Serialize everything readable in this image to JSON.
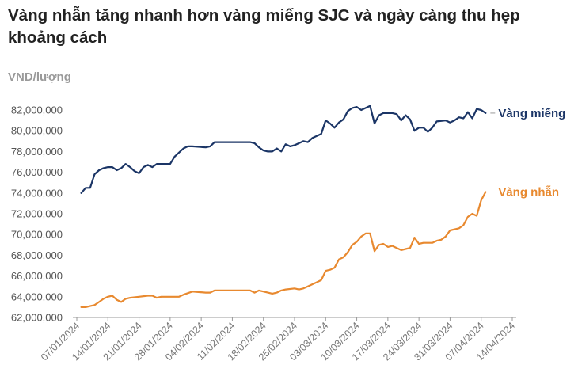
{
  "title": "Vàng nhẫn tăng nhanh hơn vàng miếng SJC và ngày càng thu hẹp khoảng cách",
  "unit_label": "VND/lượng",
  "chart_data": {
    "type": "line",
    "title": "Vàng nhẫn tăng nhanh hơn vàng miếng SJC và ngày càng thu hẹp khoảng cách",
    "ylabel": "VND/lượng",
    "xlabel": "",
    "x_range": [
      "2024-01-07",
      "2024-04-14"
    ],
    "ylim": [
      62000000,
      82000000
    ],
    "y_ticks": [
      {
        "value": 62000000,
        "label": "62,000,000"
      },
      {
        "value": 64000000,
        "label": "64,000,000"
      },
      {
        "value": 66000000,
        "label": "66,000,000"
      },
      {
        "value": 68000000,
        "label": "68,000,000"
      },
      {
        "value": 70000000,
        "label": "70,000,000"
      },
      {
        "value": 72000000,
        "label": "72,000,000"
      },
      {
        "value": 74000000,
        "label": "74,000,000"
      },
      {
        "value": 76000000,
        "label": "76,000,000"
      },
      {
        "value": 78000000,
        "label": "78,000,000"
      },
      {
        "value": 80000000,
        "label": "80,000,000"
      },
      {
        "value": 82000000,
        "label": "82,000,000"
      }
    ],
    "x_ticks": [
      {
        "value": "2024-01-07",
        "label": "07/01/2024"
      },
      {
        "value": "2024-01-14",
        "label": "14/01/2024"
      },
      {
        "value": "2024-01-21",
        "label": "21/01/2024"
      },
      {
        "value": "2024-01-28",
        "label": "28/01/2024"
      },
      {
        "value": "2024-02-04",
        "label": "04/02/2024"
      },
      {
        "value": "2024-02-11",
        "label": "11/02/2024"
      },
      {
        "value": "2024-02-18",
        "label": "18/02/2024"
      },
      {
        "value": "2024-02-25",
        "label": "25/02/2024"
      },
      {
        "value": "2024-03-03",
        "label": "03/03/2024"
      },
      {
        "value": "2024-03-10",
        "label": "10/03/2024"
      },
      {
        "value": "2024-03-17",
        "label": "17/03/2024"
      },
      {
        "value": "2024-03-24",
        "label": "24/03/2024"
      },
      {
        "value": "2024-03-31",
        "label": "31/03/2024"
      },
      {
        "value": "2024-04-07",
        "label": "07/04/2024"
      },
      {
        "value": "2024-04-14",
        "label": "14/04/2024"
      }
    ],
    "grid": false,
    "legend": "end-of-line labels",
    "series": [
      {
        "name": "Vàng miếng",
        "color": "#1b3566",
        "points": [
          [
            "2024-01-08",
            74000000
          ],
          [
            "2024-01-09",
            74500000
          ],
          [
            "2024-01-10",
            74500000
          ],
          [
            "2024-01-11",
            75800000
          ],
          [
            "2024-01-12",
            76200000
          ],
          [
            "2024-01-13",
            76400000
          ],
          [
            "2024-01-14",
            76500000
          ],
          [
            "2024-01-15",
            76500000
          ],
          [
            "2024-01-16",
            76200000
          ],
          [
            "2024-01-17",
            76400000
          ],
          [
            "2024-01-18",
            76800000
          ],
          [
            "2024-01-19",
            76500000
          ],
          [
            "2024-01-20",
            76100000
          ],
          [
            "2024-01-21",
            75900000
          ],
          [
            "2024-01-22",
            76500000
          ],
          [
            "2024-01-23",
            76700000
          ],
          [
            "2024-01-24",
            76500000
          ],
          [
            "2024-01-25",
            76800000
          ],
          [
            "2024-01-28",
            76800000
          ],
          [
            "2024-01-29",
            77500000
          ],
          [
            "2024-01-31",
            78300000
          ],
          [
            "2024-02-01",
            78500000
          ],
          [
            "2024-02-02",
            78500000
          ],
          [
            "2024-02-05",
            78400000
          ],
          [
            "2024-02-06",
            78500000
          ],
          [
            "2024-02-07",
            78900000
          ],
          [
            "2024-02-15",
            78900000
          ],
          [
            "2024-02-16",
            78800000
          ],
          [
            "2024-02-17",
            78400000
          ],
          [
            "2024-02-18",
            78100000
          ],
          [
            "2024-02-19",
            78000000
          ],
          [
            "2024-02-20",
            78000000
          ],
          [
            "2024-02-21",
            78300000
          ],
          [
            "2024-02-22",
            78000000
          ],
          [
            "2024-02-23",
            78700000
          ],
          [
            "2024-02-24",
            78500000
          ],
          [
            "2024-02-25",
            78600000
          ],
          [
            "2024-02-26",
            78800000
          ],
          [
            "2024-02-27",
            79000000
          ],
          [
            "2024-02-28",
            78900000
          ],
          [
            "2024-02-29",
            79300000
          ],
          [
            "2024-03-01",
            79500000
          ],
          [
            "2024-03-02",
            79700000
          ],
          [
            "2024-03-03",
            81000000
          ],
          [
            "2024-03-04",
            80700000
          ],
          [
            "2024-03-05",
            80300000
          ],
          [
            "2024-03-06",
            80800000
          ],
          [
            "2024-03-07",
            81100000
          ],
          [
            "2024-03-08",
            81900000
          ],
          [
            "2024-03-09",
            82200000
          ],
          [
            "2024-03-10",
            82300000
          ],
          [
            "2024-03-11",
            82000000
          ],
          [
            "2024-03-12",
            82200000
          ],
          [
            "2024-03-13",
            82400000
          ],
          [
            "2024-03-14",
            80700000
          ],
          [
            "2024-03-15",
            81500000
          ],
          [
            "2024-03-16",
            81700000
          ],
          [
            "2024-03-18",
            81700000
          ],
          [
            "2024-03-19",
            81600000
          ],
          [
            "2024-03-20",
            81000000
          ],
          [
            "2024-03-21",
            81500000
          ],
          [
            "2024-03-22",
            81100000
          ],
          [
            "2024-03-23",
            80000000
          ],
          [
            "2024-03-24",
            80300000
          ],
          [
            "2024-03-25",
            80300000
          ],
          [
            "2024-03-26",
            79900000
          ],
          [
            "2024-03-27",
            80300000
          ],
          [
            "2024-03-28",
            80900000
          ],
          [
            "2024-03-30",
            81000000
          ],
          [
            "2024-03-31",
            80800000
          ],
          [
            "2024-04-01",
            81000000
          ],
          [
            "2024-04-02",
            81300000
          ],
          [
            "2024-04-03",
            81200000
          ],
          [
            "2024-04-04",
            81800000
          ],
          [
            "2024-04-05",
            81200000
          ],
          [
            "2024-04-06",
            82100000
          ],
          [
            "2024-04-07",
            82000000
          ],
          [
            "2024-04-08",
            81700000
          ]
        ]
      },
      {
        "name": "Vàng nhẫn",
        "color": "#e8892f",
        "points": [
          [
            "2024-01-08",
            63000000
          ],
          [
            "2024-01-09",
            63000000
          ],
          [
            "2024-01-10",
            63100000
          ],
          [
            "2024-01-11",
            63200000
          ],
          [
            "2024-01-12",
            63500000
          ],
          [
            "2024-01-13",
            63800000
          ],
          [
            "2024-01-14",
            64000000
          ],
          [
            "2024-01-15",
            64100000
          ],
          [
            "2024-01-16",
            63700000
          ],
          [
            "2024-01-17",
            63500000
          ],
          [
            "2024-01-18",
            63800000
          ],
          [
            "2024-01-19",
            63900000
          ],
          [
            "2024-01-21",
            64000000
          ],
          [
            "2024-01-23",
            64100000
          ],
          [
            "2024-01-24",
            64100000
          ],
          [
            "2024-01-25",
            63900000
          ],
          [
            "2024-01-26",
            64000000
          ],
          [
            "2024-01-30",
            64000000
          ],
          [
            "2024-01-31",
            64200000
          ],
          [
            "2024-02-02",
            64500000
          ],
          [
            "2024-02-05",
            64400000
          ],
          [
            "2024-02-06",
            64400000
          ],
          [
            "2024-02-07",
            64600000
          ],
          [
            "2024-02-15",
            64600000
          ],
          [
            "2024-02-16",
            64400000
          ],
          [
            "2024-02-17",
            64600000
          ],
          [
            "2024-02-19",
            64400000
          ],
          [
            "2024-02-20",
            64300000
          ],
          [
            "2024-02-21",
            64400000
          ],
          [
            "2024-02-22",
            64600000
          ],
          [
            "2024-02-23",
            64700000
          ],
          [
            "2024-02-25",
            64800000
          ],
          [
            "2024-02-26",
            64700000
          ],
          [
            "2024-02-27",
            64800000
          ],
          [
            "2024-02-28",
            65000000
          ],
          [
            "2024-02-29",
            65200000
          ],
          [
            "2024-03-01",
            65400000
          ],
          [
            "2024-03-02",
            65600000
          ],
          [
            "2024-03-03",
            66500000
          ],
          [
            "2024-03-04",
            66600000
          ],
          [
            "2024-03-05",
            66800000
          ],
          [
            "2024-03-06",
            67600000
          ],
          [
            "2024-03-07",
            67800000
          ],
          [
            "2024-03-08",
            68300000
          ],
          [
            "2024-03-09",
            69000000
          ],
          [
            "2024-03-10",
            69300000
          ],
          [
            "2024-03-11",
            69800000
          ],
          [
            "2024-03-12",
            70100000
          ],
          [
            "2024-03-13",
            70100000
          ],
          [
            "2024-03-14",
            68400000
          ],
          [
            "2024-03-15",
            69000000
          ],
          [
            "2024-03-16",
            69100000
          ],
          [
            "2024-03-17",
            68800000
          ],
          [
            "2024-03-18",
            68900000
          ],
          [
            "2024-03-19",
            68700000
          ],
          [
            "2024-03-20",
            68500000
          ],
          [
            "2024-03-21",
            68600000
          ],
          [
            "2024-03-22",
            68700000
          ],
          [
            "2024-03-23",
            69700000
          ],
          [
            "2024-03-24",
            69100000
          ],
          [
            "2024-03-25",
            69200000
          ],
          [
            "2024-03-27",
            69200000
          ],
          [
            "2024-03-28",
            69400000
          ],
          [
            "2024-03-29",
            69500000
          ],
          [
            "2024-03-30",
            69800000
          ],
          [
            "2024-03-31",
            70400000
          ],
          [
            "2024-04-02",
            70600000
          ],
          [
            "2024-04-03",
            70900000
          ],
          [
            "2024-04-04",
            71700000
          ],
          [
            "2024-04-05",
            72000000
          ],
          [
            "2024-04-06",
            71800000
          ],
          [
            "2024-04-07",
            73300000
          ],
          [
            "2024-04-08",
            74100000
          ]
        ]
      }
    ]
  }
}
